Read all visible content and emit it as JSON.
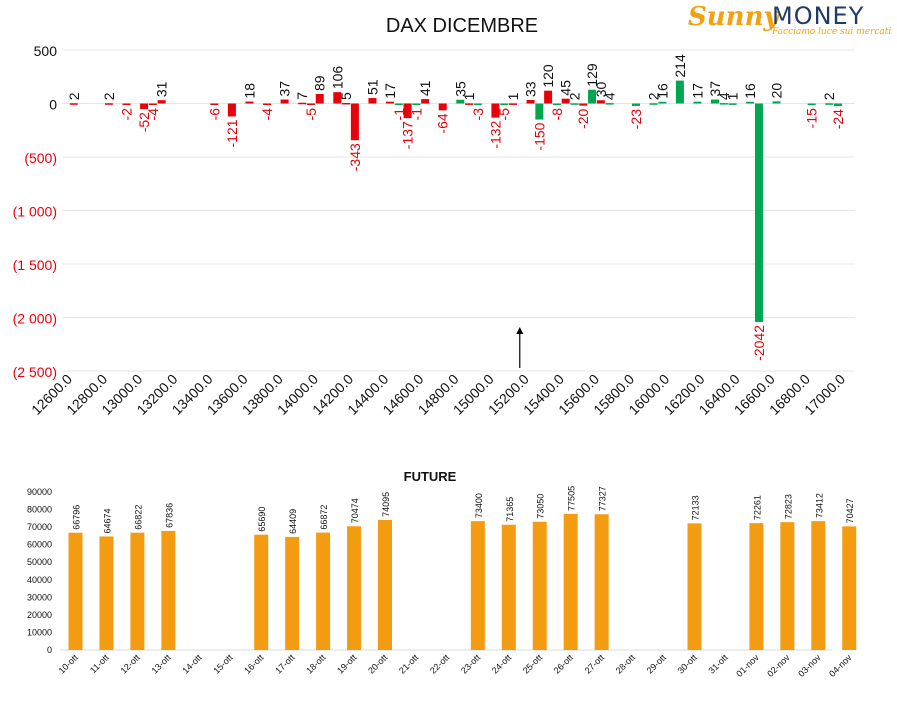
{
  "logo": {
    "brand_a": "Sunny",
    "brand_b": "MONEY",
    "tagline": "Facciamo luce sui mercati"
  },
  "colors": {
    "negative": "#e8000b",
    "positive": "#00a650",
    "future_bar": "#f39c12",
    "negative_tick": "#e8000b"
  },
  "chart_data": [
    {
      "type": "bar",
      "title": "DAX DICEMBRE",
      "xlabel": "",
      "ylabel": "",
      "ylim": [
        -2500,
        500
      ],
      "y_ticks": [
        500,
        0,
        -500,
        -1000,
        -1500,
        -2000,
        -2500
      ],
      "y_tick_labels": [
        "500",
        "0",
        "(500)",
        "(1 000)",
        "(1 500)",
        "(2 000)",
        "(2 500)"
      ],
      "x_ticks": [
        12600,
        12800,
        13000,
        13200,
        13400,
        13600,
        13800,
        14000,
        14200,
        14400,
        14600,
        14800,
        15000,
        15200,
        15400,
        15600,
        15800,
        16000,
        16200,
        16400,
        16600,
        16800,
        17000
      ],
      "x_tick_labels": [
        "12600.0",
        "12800.0",
        "13000.0",
        "13200.0",
        "13400.0",
        "13600.0",
        "13800.0",
        "14000.0",
        "14200.0",
        "14400.0",
        "14600.0",
        "14800.0",
        "15000.0",
        "15200.0",
        "15400.0",
        "15600.0",
        "15800.0",
        "16000.0",
        "16200.0",
        "16400.0",
        "16600.0",
        "16800.0",
        "17000.0"
      ],
      "xlim": [
        12600,
        17000
      ],
      "grid": true,
      "legend": "none",
      "annotations": [
        {
          "type": "arrow",
          "x": 15200,
          "note": "current price marker"
        }
      ],
      "series": [
        {
          "color_role": "negative",
          "points": [
            {
              "x": 12650,
              "y": 2
            },
            {
              "x": 12850,
              "y": 2
            },
            {
              "x": 12950,
              "y": -2
            },
            {
              "x": 13050,
              "y": -52
            },
            {
              "x": 13100,
              "y": -4
            },
            {
              "x": 13150,
              "y": 31
            },
            {
              "x": 13450,
              "y": -6
            },
            {
              "x": 13550,
              "y": -121
            },
            {
              "x": 13650,
              "y": 18
            },
            {
              "x": 13750,
              "y": -4
            },
            {
              "x": 13850,
              "y": 37
            },
            {
              "x": 13950,
              "y": 7
            },
            {
              "x": 14000,
              "y": -5
            },
            {
              "x": 14050,
              "y": 89
            },
            {
              "x": 14150,
              "y": 106
            },
            {
              "x": 14200,
              "y": 5
            },
            {
              "x": 14250,
              "y": -343
            },
            {
              "x": 14350,
              "y": 51
            },
            {
              "x": 14450,
              "y": 17
            },
            {
              "x": 14550,
              "y": -137
            },
            {
              "x": 14650,
              "y": 41
            },
            {
              "x": 14750,
              "y": -64
            },
            {
              "x": 14900,
              "y": 1
            },
            {
              "x": 15050,
              "y": -132
            },
            {
              "x": 15150,
              "y": 1
            },
            {
              "x": 15250,
              "y": 33
            },
            {
              "x": 15350,
              "y": 120
            },
            {
              "x": 15450,
              "y": 45
            },
            {
              "x": 15550,
              "y": -20
            },
            {
              "x": 15650,
              "y": 30
            }
          ]
        },
        {
          "color_role": "positive",
          "points": [
            {
              "x": 14500,
              "y": -1
            },
            {
              "x": 14600,
              "y": -1
            },
            {
              "x": 14850,
              "y": 35
            },
            {
              "x": 14950,
              "y": -3
            },
            {
              "x": 15100,
              "y": -5
            },
            {
              "x": 15300,
              "y": -150
            },
            {
              "x": 15400,
              "y": -8
            },
            {
              "x": 15500,
              "y": 2
            },
            {
              "x": 15600,
              "y": 129
            },
            {
              "x": 15700,
              "y": 4
            },
            {
              "x": 15850,
              "y": -23
            },
            {
              "x": 15950,
              "y": 2
            },
            {
              "x": 16000,
              "y": 16
            },
            {
              "x": 16100,
              "y": 214
            },
            {
              "x": 16200,
              "y": 17
            },
            {
              "x": 16300,
              "y": 37
            },
            {
              "x": 16350,
              "y": 4
            },
            {
              "x": 16400,
              "y": 1
            },
            {
              "x": 16500,
              "y": 16
            },
            {
              "x": 16550,
              "y": -2042
            },
            {
              "x": 16650,
              "y": 20
            },
            {
              "x": 16850,
              "y": -15
            },
            {
              "x": 16950,
              "y": 2
            },
            {
              "x": 17000,
              "y": -24
            }
          ]
        }
      ]
    },
    {
      "type": "bar",
      "title": "FUTURE",
      "xlabel": "",
      "ylabel": "",
      "ylim": [
        0,
        90000
      ],
      "y_ticks": [
        0,
        10000,
        20000,
        30000,
        40000,
        50000,
        60000,
        70000,
        80000,
        90000
      ],
      "grid": false,
      "legend": "none",
      "categories": [
        "10-ott",
        "11-ott",
        "12-ott",
        "13-ott",
        "14-ott",
        "15-ott",
        "16-ott",
        "17-ott",
        "18-ott",
        "19-ott",
        "20-ott",
        "21-ott",
        "22-ott",
        "23-ott",
        "24-ott",
        "25-ott",
        "26-ott",
        "27-ott",
        "28-ott",
        "29-ott",
        "30-ott",
        "31-ott",
        "01-nov",
        "02-nov",
        "03-nov",
        "04-nov"
      ],
      "values": [
        66796,
        64674,
        66822,
        67836,
        null,
        null,
        65690,
        64409,
        66872,
        70474,
        74095,
        null,
        null,
        73400,
        71365,
        73050,
        77505,
        77327,
        null,
        null,
        72133,
        null,
        72261,
        72823,
        73412,
        70427
      ]
    }
  ]
}
